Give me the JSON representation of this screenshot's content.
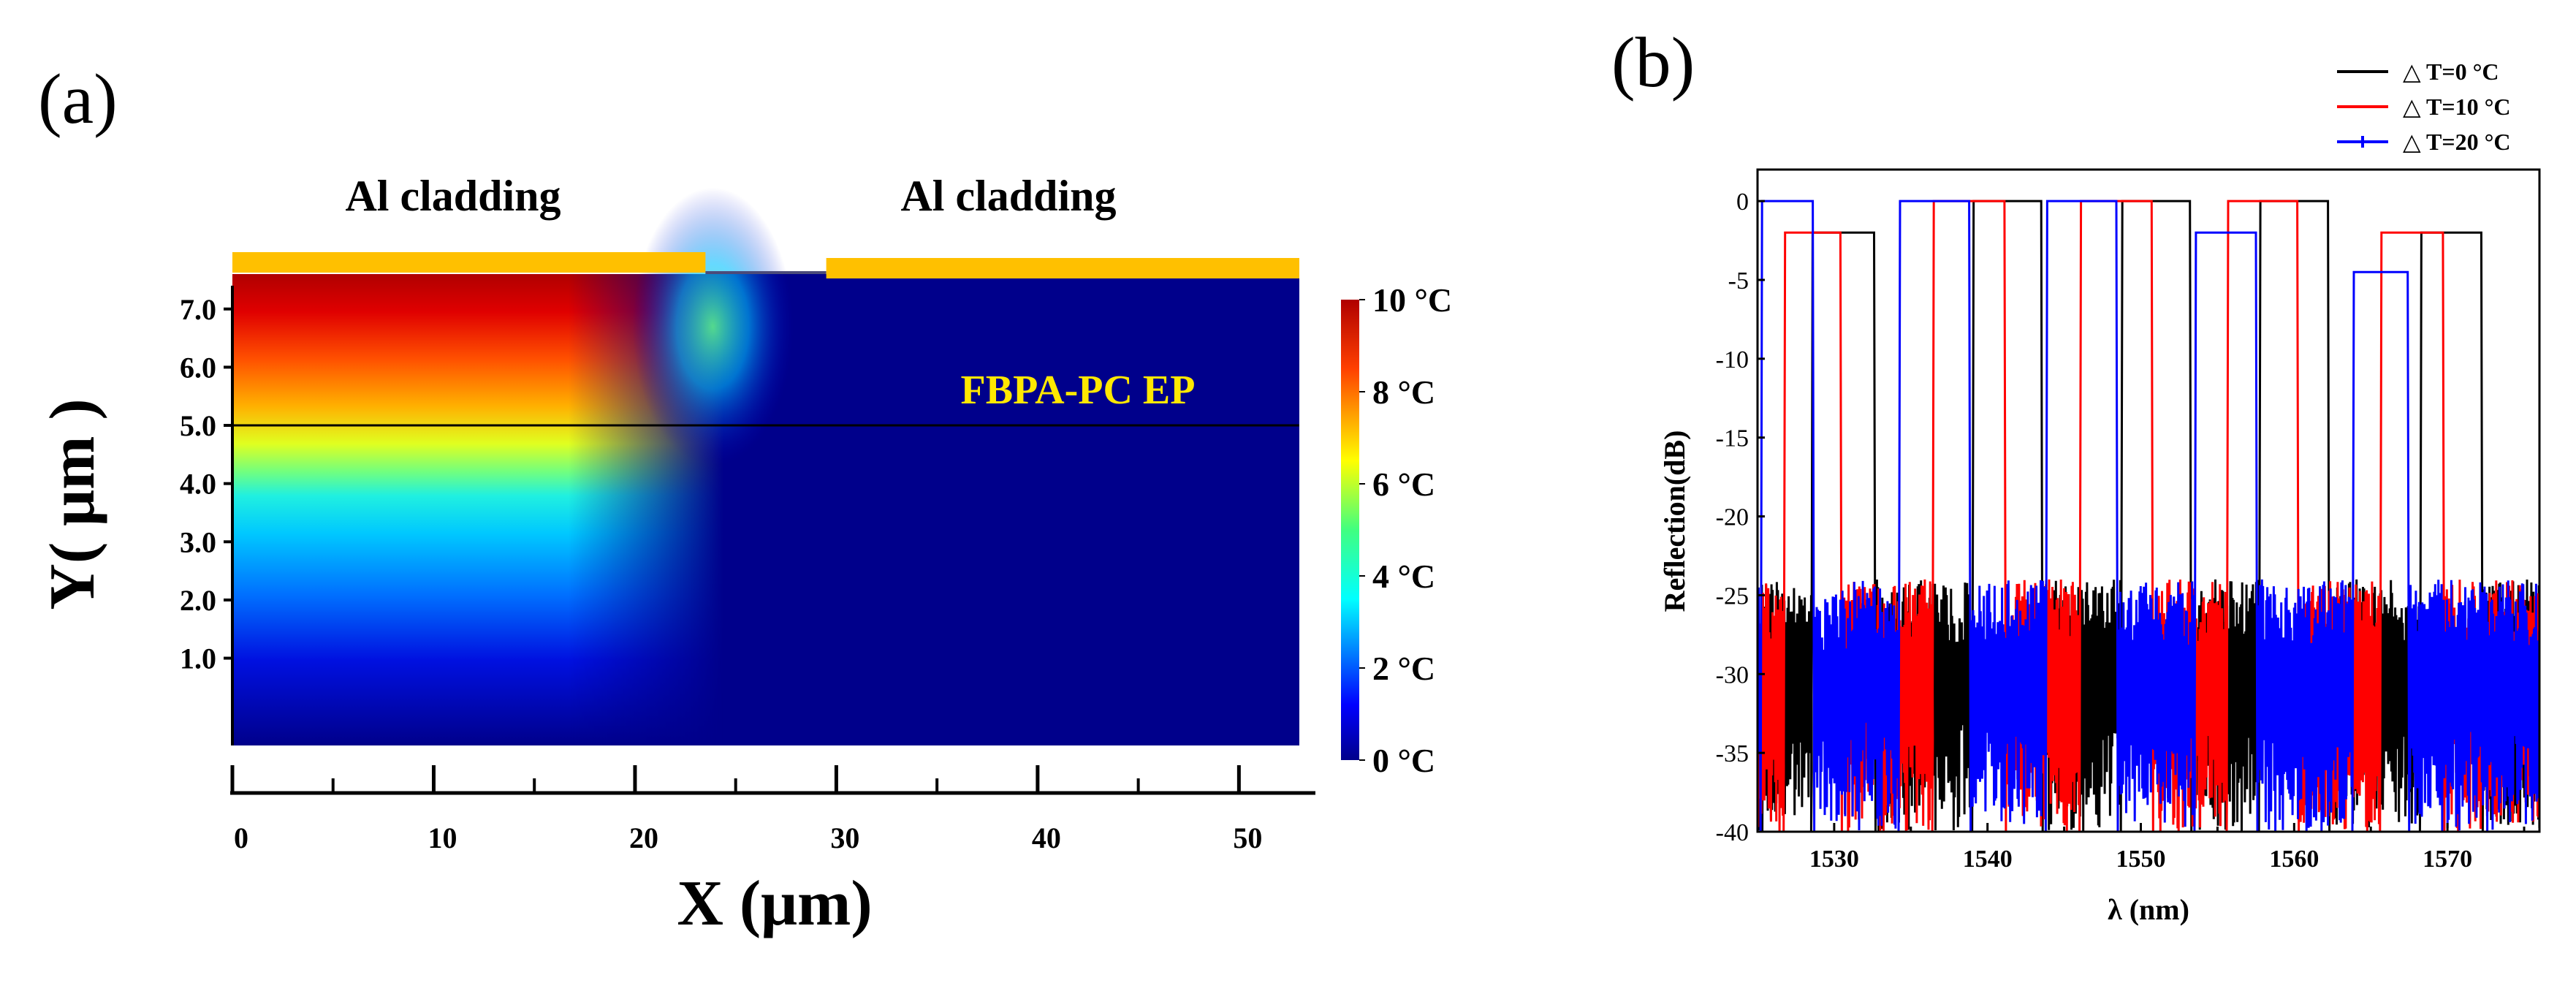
{
  "figure": {
    "panel_a_label": "(a)",
    "panel_b_label": "(b)"
  },
  "panel_a": {
    "top_label_left": "Al cladding",
    "top_label_right": "Al cladding",
    "region_label": "FBPA-PC EP",
    "colors": {
      "cladding": "#FFC000",
      "region_label": "#FFE800",
      "background_fluid": "#00008B"
    }
  },
  "panel_b": {
    "colors": {
      "dT0": "#000000",
      "dT10": "#FF0000",
      "dT20": "#0000FF"
    }
  },
  "chart_data": [
    {
      "type": "heatmap",
      "title": "",
      "xlabel": "X (μm)",
      "ylabel": "Y( μm )",
      "xlim": [
        0,
        53
      ],
      "ylim": [
        -0.5,
        7.6
      ],
      "x_ticks": [
        "0",
        "10",
        "20",
        "30",
        "40",
        "50"
      ],
      "y_ticks": [
        "1.0",
        "2.0",
        "3.0",
        "4.0",
        "5.0",
        "6.0",
        "7.0"
      ],
      "core_boundary_y": 5.0,
      "heater_x_range": [
        0,
        23.5
      ],
      "colorbar": {
        "min": 0,
        "max": 10,
        "unit": "°C",
        "tick_labels": [
          "0 °C",
          "2 °C",
          "4 °C",
          "6 °C",
          "8 °C",
          "10 °C"
        ],
        "colormap": "jet"
      }
    },
    {
      "type": "line",
      "title": "",
      "xlabel": "λ (nm)",
      "ylabel": "Reflection(dB)",
      "xlim": [
        1525,
        1576
      ],
      "ylim": [
        -40,
        2
      ],
      "x_ticks": [
        "1530",
        "1540",
        "1550",
        "1560",
        "1570"
      ],
      "y_ticks": [
        "0",
        "-5",
        "-10",
        "-15",
        "-20",
        "-25",
        "-30",
        "-35",
        "-40"
      ],
      "noise_floor_db": [
        -24,
        -40
      ],
      "series": [
        {
          "name": "△ T=0 °C",
          "color": "#000000",
          "passbands": [
            {
              "start": 1528.5,
              "end": 1532.7,
              "level": -2
            },
            {
              "start": 1539.0,
              "end": 1543.6,
              "level": 0
            },
            {
              "start": 1548.7,
              "end": 1553.3,
              "level": 0
            },
            {
              "start": 1557.7,
              "end": 1562.3,
              "level": 0
            },
            {
              "start": 1568.2,
              "end": 1572.3,
              "level": -2
            }
          ]
        },
        {
          "name": "△ T=10 °C",
          "color": "#FF0000",
          "passbands": [
            {
              "start": 1526.7,
              "end": 1530.5,
              "level": -2
            },
            {
              "start": 1536.4,
              "end": 1541.2,
              "level": 0
            },
            {
              "start": 1546.0,
              "end": 1550.8,
              "level": 0
            },
            {
              "start": 1555.6,
              "end": 1560.3,
              "level": 0
            },
            {
              "start": 1565.6,
              "end": 1569.8,
              "level": -2
            }
          ]
        },
        {
          "name": "△ T=20 °C",
          "color": "#0000FF",
          "passbands": [
            {
              "start": 1525.2,
              "end": 1528.7,
              "level": 0
            },
            {
              "start": 1534.2,
              "end": 1538.9,
              "level": 0
            },
            {
              "start": 1543.8,
              "end": 1548.5,
              "level": 0
            },
            {
              "start": 1553.5,
              "end": 1557.6,
              "level": -2
            },
            {
              "start": 1563.8,
              "end": 1567.5,
              "level": -4.5
            }
          ]
        }
      ],
      "legend_position": "top-right"
    }
  ]
}
